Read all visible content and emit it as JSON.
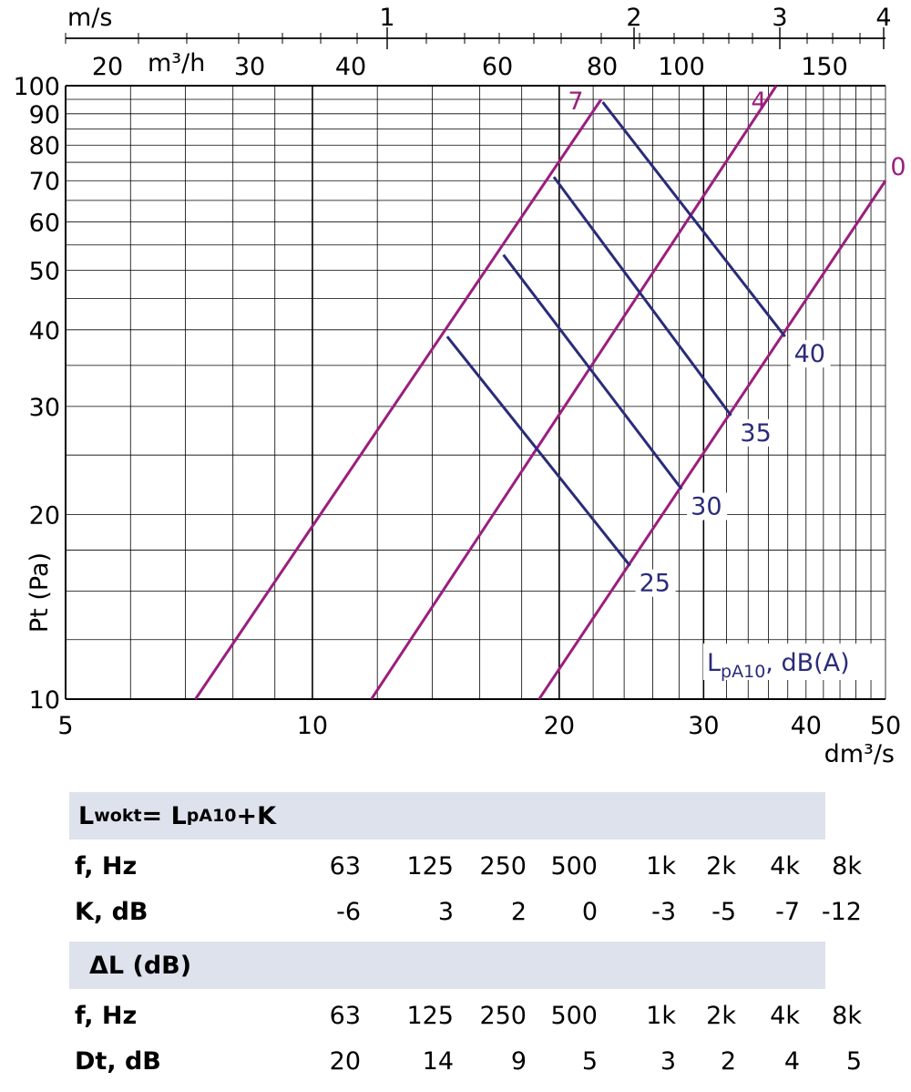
{
  "chart_data": {
    "type": "line",
    "x_axis": {
      "label": "dm³/s",
      "scale": "log",
      "range": [
        5,
        50
      ],
      "ticks": [
        5,
        10,
        20,
        30,
        40,
        50
      ]
    },
    "y_axis": {
      "label": "Pt (Pa)",
      "scale": "log",
      "range": [
        10,
        100
      ],
      "ticks": [
        10,
        20,
        30,
        40,
        50,
        60,
        70,
        80,
        90,
        100
      ]
    },
    "top_axis_velocity": {
      "label": "m/s",
      "ticks": [
        "1",
        "2",
        "3",
        "4"
      ]
    },
    "top_axis_flow": {
      "label": "m³/h",
      "ticks": [
        "20",
        "30",
        "40",
        "60",
        "80",
        "100",
        "150"
      ]
    },
    "series": [
      {
        "name": "7",
        "x": [
          7.2,
          22.5
        ],
        "y": [
          10,
          95
        ]
      },
      {
        "name": "4",
        "x": [
          11.8,
          36.8
        ],
        "y": [
          10,
          100
        ]
      },
      {
        "name": "0",
        "x": [
          18.9,
          50
        ],
        "y": [
          10,
          70
        ]
      }
    ],
    "noise_lines": [
      {
        "name": "40",
        "x": [
          22.6,
          37.7
        ],
        "y": [
          94,
          39
        ]
      },
      {
        "name": "35",
        "x": [
          19.7,
          32.4
        ],
        "y": [
          71,
          29
        ]
      },
      {
        "name": "30",
        "x": [
          17.1,
          28.2
        ],
        "y": [
          53,
          22
        ]
      },
      {
        "name": "25",
        "x": [
          14.6,
          24.4
        ],
        "y": [
          39,
          16.5
        ]
      }
    ],
    "noise_legend": "LpA10, dB(A)",
    "noise_legend_main": "L",
    "noise_legend_sub": "pA10",
    "noise_legend_rest": ", dB(A)",
    "colors": {
      "pressure_lines": "#9b1e7e",
      "noise_lines": "#2b2b7a",
      "grid": "#000000"
    }
  },
  "table1": {
    "title_main": "L",
    "title_sub": "wokt",
    "title_eq": "= L",
    "title_sub2": "pA10",
    "title_end": "+K",
    "row1_label": "f, Hz",
    "row1_values": [
      "63",
      "125",
      "250",
      "500",
      "1k",
      "2k",
      "4k",
      "8k"
    ],
    "row2_label": "K, dB",
    "row2_values": [
      "-6",
      "3",
      "2",
      "0",
      "-3",
      "-5",
      "-7",
      "-12"
    ]
  },
  "table2": {
    "title": "ΔL (dB)",
    "row1_label": "f, Hz",
    "row1_values": [
      "63",
      "125",
      "250",
      "500",
      "1k",
      "2k",
      "4k",
      "8k"
    ],
    "row2_label": "Dt, dB",
    "row2_values": [
      "20",
      "14",
      "9",
      "5",
      "3",
      "2",
      "4",
      "5"
    ]
  }
}
